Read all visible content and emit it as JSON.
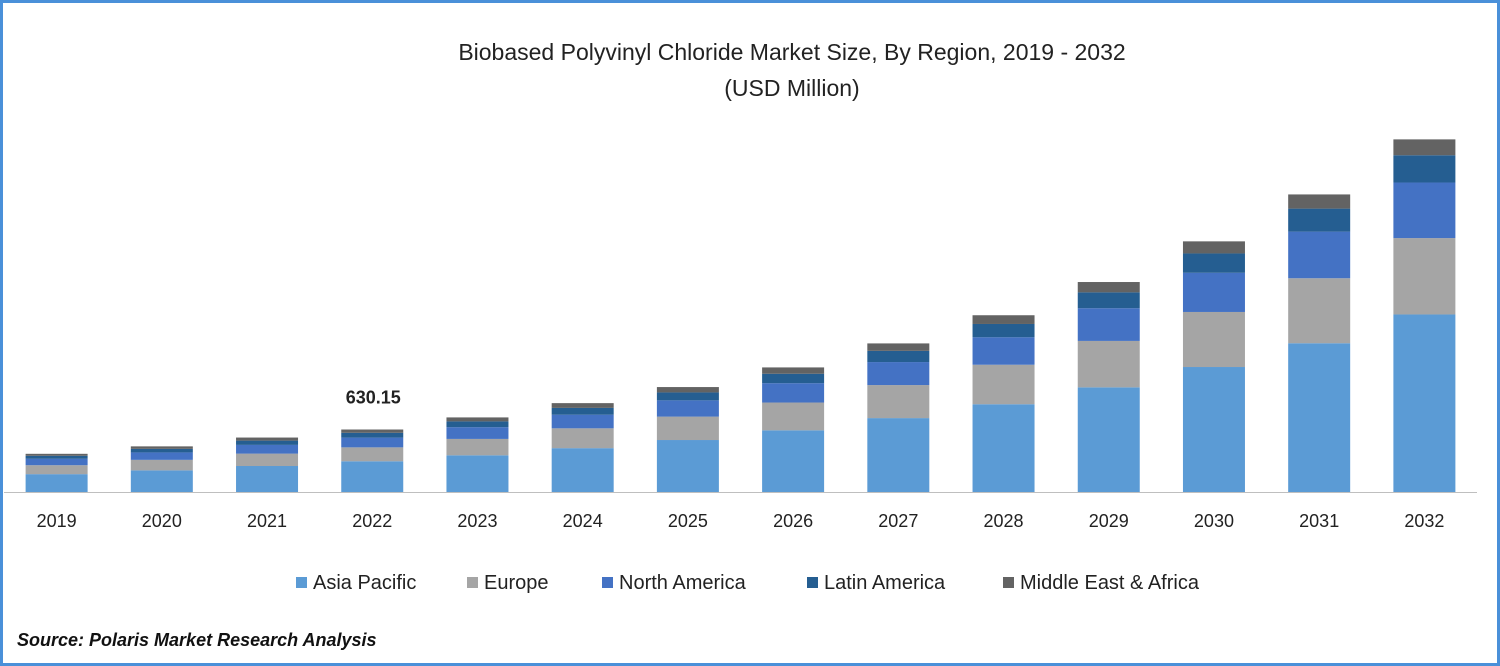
{
  "chart_data": {
    "type": "bar",
    "stacked": true,
    "title": "Biobased Polyvinyl Chloride Market Size, By Region, 2019 - 2032",
    "subtitle": "(USD Million)",
    "categories": [
      "2019",
      "2020",
      "2021",
      "2022",
      "2023",
      "2024",
      "2025",
      "2026",
      "2027",
      "2028",
      "2029",
      "2030",
      "2031",
      "2032"
    ],
    "series": [
      {
        "name": "Asia Pacific",
        "color": "#5b9bd5",
        "values": [
          180,
          218,
          262,
          310,
          370,
          442,
          524,
          622,
          745,
          885,
          1055,
          1260,
          1500,
          1790
        ]
      },
      {
        "name": "Europe",
        "color": "#a5a5a5",
        "values": [
          90,
          106,
          125,
          140,
          165,
          200,
          236,
          280,
          333,
          398,
          468,
          555,
          655,
          770
        ]
      },
      {
        "name": "North America",
        "color": "#4472c4",
        "values": [
          65,
          75,
          88,
          98,
          118,
          137,
          164,
          195,
          232,
          277,
          330,
          395,
          470,
          560
        ]
      },
      {
        "name": "Latin America",
        "color": "#255e91",
        "values": [
          30,
          36,
          43,
          49,
          59,
          69,
          80,
          95,
          113,
          134,
          160,
          195,
          232,
          275
        ]
      },
      {
        "name": "Middle East & Africa",
        "color": "#636363",
        "values": [
          20,
          25,
          31,
          33,
          40,
          48,
          54,
          64,
          75,
          88,
          104,
          122,
          143,
          160
        ]
      }
    ],
    "ylim": [
      0,
      3700
    ],
    "annotations": [
      {
        "category": "2022",
        "text": "630.15"
      }
    ],
    "legend": "bottom",
    "grid": false
  },
  "source": "Source: Polaris Market Research Analysis"
}
